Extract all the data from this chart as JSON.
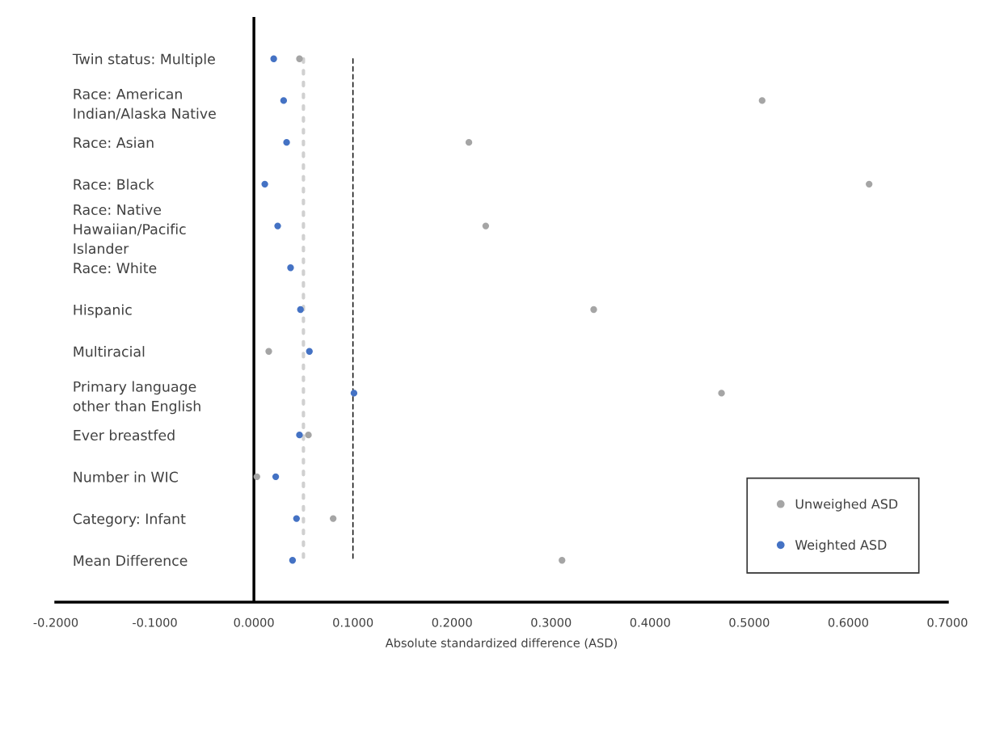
{
  "chart_data": {
    "type": "scatter",
    "orientation": "horizontal",
    "xlabel": "Absolute standardized difference (ASD)",
    "categories": [
      "Twin status: Multiple",
      "Race: American\nIndian/Alaska Native",
      "Race: Asian",
      "Race: Black",
      "Race: Native\nHawaiian/Pacific\nIslander",
      "Race: White",
      "Hispanic",
      "Multiracial",
      "Primary language\nother than English",
      "Ever breastfed",
      "Number in WIC",
      "Category: Infant",
      "Mean Difference"
    ],
    "series": [
      {
        "name": "Unweighed ASD",
        "color": "#a5a5a5",
        "values": [
          0.046,
          0.513,
          0.217,
          0.621,
          0.234,
          null,
          0.343,
          0.015,
          0.472,
          0.055,
          0.003,
          0.08,
          0.311
        ]
      },
      {
        "name": "Weighted ASD",
        "color": "#4472c4",
        "values": [
          0.02,
          0.03,
          0.033,
          0.011,
          0.024,
          0.037,
          0.047,
          0.056,
          0.101,
          0.046,
          0.022,
          0.043,
          0.039
        ]
      }
    ],
    "xlim": [
      -0.2,
      0.7
    ],
    "xticks": [
      {
        "value": -0.2,
        "label": "-0.2000"
      },
      {
        "value": -0.1,
        "label": "-0.1000"
      },
      {
        "value": 0,
        "label": "0.0000"
      },
      {
        "value": 0.1,
        "label": "0.1000"
      },
      {
        "value": 0.2,
        "label": "0.2000"
      },
      {
        "value": 0.3,
        "label": "0.3000"
      },
      {
        "value": 0.4,
        "label": "0.4000"
      },
      {
        "value": 0.5,
        "label": "0.5000"
      },
      {
        "value": 0.6,
        "label": "0.6000"
      },
      {
        "value": 0.7,
        "label": "0.7000"
      }
    ],
    "ref_lines": [
      {
        "axis": "x",
        "value": 0.05,
        "color": "#d0d0d0",
        "line_style": "dotted"
      },
      {
        "axis": "x",
        "value": 0.1,
        "color": "#000000",
        "line_style": "dashed"
      }
    ],
    "marker": "circle",
    "grid": false,
    "legend": "bottom right"
  }
}
